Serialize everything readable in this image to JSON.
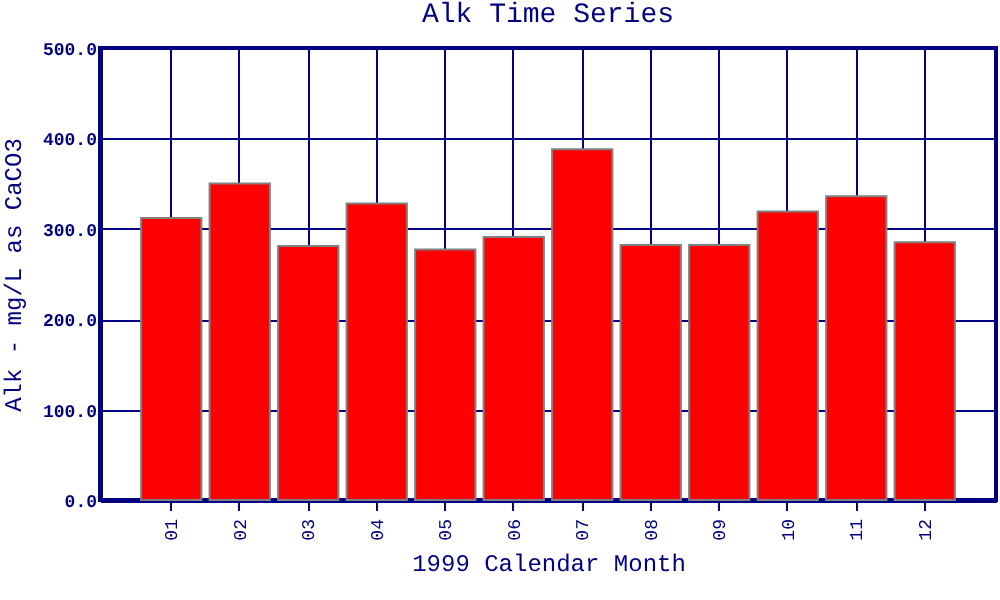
{
  "chart_data": {
    "type": "bar",
    "title": "Alk Time Series",
    "xlabel": "1999 Calendar Month",
    "ylabel": "Alk - mg/L as CaCO3",
    "categories": [
      "01",
      "02",
      "03",
      "04",
      "05",
      "06",
      "07",
      "08",
      "09",
      "10",
      "11",
      "12"
    ],
    "values": [
      312,
      350,
      281,
      328,
      277,
      291,
      388,
      282,
      282,
      319,
      336,
      285
    ],
    "color": "#ff0000",
    "ylim": [
      0,
      500
    ],
    "yticks": [
      {
        "value": 0,
        "label": "0.0"
      },
      {
        "value": 100,
        "label": "100.0"
      },
      {
        "value": 200,
        "label": "200.0"
      },
      {
        "value": 300,
        "label": "300.0"
      },
      {
        "value": 400,
        "label": "400.0"
      },
      {
        "value": 500,
        "label": "500.0"
      }
    ],
    "grid": true
  }
}
